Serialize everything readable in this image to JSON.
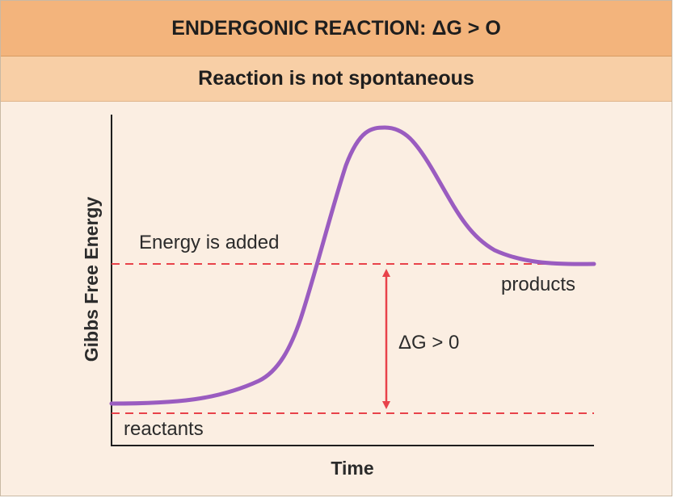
{
  "header": {
    "title_prefix": "ENDERGONIC REACTION: ",
    "title_symbol": "ΔG",
    "title_suffix": " > O",
    "subtitle": "Reaction is not spontaneous"
  },
  "diagram": {
    "ylabel": "Gibbs Free Energy",
    "xlabel": "Time",
    "energy_label": "Energy is added",
    "products_label": "products",
    "reactants_label": "reactants",
    "delta_symbol": "ΔG",
    "delta_relation": " > 0",
    "colors": {
      "curve": "#9a5cc0",
      "dashed_lines": "#e8424a",
      "arrow": "#e8424a",
      "axes": "#1e1e1e",
      "header_bg": "#f3b47c",
      "subheader_bg": "#f8cfa6",
      "panel_bg": "#fbeee2"
    }
  }
}
